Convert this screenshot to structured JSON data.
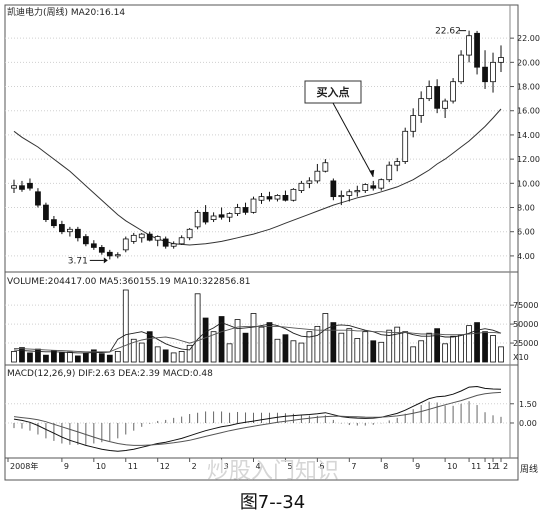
{
  "chart_data": [
    {
      "type": "candlestick",
      "title": "凯迪电力(周线) MA20:16.14",
      "ylim": [
        3.0,
        23.5
      ],
      "yticks": [
        4.0,
        6.0,
        8.0,
        10.0,
        12.0,
        14.0,
        16.0,
        18.0,
        20.0,
        22.0
      ],
      "ytick_labels": [
        "4.00",
        "6.00",
        "8.00",
        "10.00",
        "12.00",
        "14.00",
        "16.00",
        "18.00",
        "20.00",
        "22.00"
      ],
      "candles": [
        {
          "o": 9.6,
          "h": 10.3,
          "l": 9.2,
          "c": 9.8
        },
        {
          "o": 9.8,
          "h": 10.2,
          "l": 9.3,
          "c": 9.5
        },
        {
          "o": 10.0,
          "h": 10.4,
          "l": 9.4,
          "c": 9.6
        },
        {
          "o": 9.3,
          "h": 9.6,
          "l": 8.0,
          "c": 8.2
        },
        {
          "o": 8.2,
          "h": 8.4,
          "l": 6.8,
          "c": 7.0
        },
        {
          "o": 7.0,
          "h": 7.3,
          "l": 6.3,
          "c": 6.5
        },
        {
          "o": 6.6,
          "h": 6.9,
          "l": 5.8,
          "c": 6.0
        },
        {
          "o": 6.0,
          "h": 6.4,
          "l": 5.6,
          "c": 6.2
        },
        {
          "o": 6.2,
          "h": 6.4,
          "l": 5.2,
          "c": 5.5
        },
        {
          "o": 5.6,
          "h": 5.8,
          "l": 4.8,
          "c": 5.0
        },
        {
          "o": 5.0,
          "h": 5.3,
          "l": 4.5,
          "c": 4.7
        },
        {
          "o": 4.7,
          "h": 4.9,
          "l": 4.1,
          "c": 4.3
        },
        {
          "o": 4.3,
          "h": 4.5,
          "l": 3.71,
          "c": 4.0
        },
        {
          "o": 4.0,
          "h": 4.3,
          "l": 3.8,
          "c": 4.1
        },
        {
          "o": 4.5,
          "h": 5.6,
          "l": 4.3,
          "c": 5.4
        },
        {
          "o": 5.2,
          "h": 5.9,
          "l": 5.0,
          "c": 5.7
        },
        {
          "o": 5.5,
          "h": 5.9,
          "l": 5.1,
          "c": 5.8
        },
        {
          "o": 5.8,
          "h": 6.0,
          "l": 5.2,
          "c": 5.3
        },
        {
          "o": 5.3,
          "h": 5.7,
          "l": 4.8,
          "c": 5.6
        },
        {
          "o": 5.4,
          "h": 5.6,
          "l": 4.6,
          "c": 4.8
        },
        {
          "o": 4.8,
          "h": 5.2,
          "l": 4.6,
          "c": 5.0
        },
        {
          "o": 5.0,
          "h": 5.7,
          "l": 4.9,
          "c": 5.5
        },
        {
          "o": 5.5,
          "h": 6.3,
          "l": 5.3,
          "c": 6.2
        },
        {
          "o": 6.4,
          "h": 7.8,
          "l": 6.2,
          "c": 7.6
        },
        {
          "o": 7.6,
          "h": 8.2,
          "l": 6.6,
          "c": 6.8
        },
        {
          "o": 7.0,
          "h": 7.6,
          "l": 6.8,
          "c": 7.3
        },
        {
          "o": 7.4,
          "h": 8.0,
          "l": 7.0,
          "c": 7.2
        },
        {
          "o": 7.2,
          "h": 7.6,
          "l": 6.8,
          "c": 7.5
        },
        {
          "o": 7.5,
          "h": 8.3,
          "l": 7.3,
          "c": 8.0
        },
        {
          "o": 8.0,
          "h": 8.4,
          "l": 7.4,
          "c": 7.6
        },
        {
          "o": 7.6,
          "h": 8.9,
          "l": 7.5,
          "c": 8.7
        },
        {
          "o": 8.6,
          "h": 9.2,
          "l": 8.3,
          "c": 8.9
        },
        {
          "o": 8.9,
          "h": 9.3,
          "l": 8.5,
          "c": 8.7
        },
        {
          "o": 8.7,
          "h": 9.1,
          "l": 8.5,
          "c": 9.0
        },
        {
          "o": 9.0,
          "h": 9.4,
          "l": 8.5,
          "c": 8.6
        },
        {
          "o": 8.6,
          "h": 9.6,
          "l": 8.5,
          "c": 9.5
        },
        {
          "o": 9.4,
          "h": 10.2,
          "l": 9.2,
          "c": 10.0
        },
        {
          "o": 10.0,
          "h": 10.5,
          "l": 9.6,
          "c": 10.2
        },
        {
          "o": 10.2,
          "h": 11.6,
          "l": 10.0,
          "c": 11.0
        },
        {
          "o": 11.0,
          "h": 12.0,
          "l": 10.9,
          "c": 11.7
        },
        {
          "o": 10.2,
          "h": 10.4,
          "l": 8.6,
          "c": 8.9
        },
        {
          "o": 8.9,
          "h": 9.4,
          "l": 8.2,
          "c": 9.0
        },
        {
          "o": 9.0,
          "h": 9.5,
          "l": 8.5,
          "c": 9.3
        },
        {
          "o": 9.3,
          "h": 9.8,
          "l": 8.9,
          "c": 9.4
        },
        {
          "o": 9.4,
          "h": 10.0,
          "l": 9.2,
          "c": 9.9
        },
        {
          "o": 9.8,
          "h": 10.2,
          "l": 9.4,
          "c": 9.6
        },
        {
          "o": 9.6,
          "h": 10.4,
          "l": 9.4,
          "c": 10.3
        },
        {
          "o": 10.3,
          "h": 11.8,
          "l": 10.1,
          "c": 11.5
        },
        {
          "o": 11.5,
          "h": 12.1,
          "l": 11.0,
          "c": 11.8
        },
        {
          "o": 11.8,
          "h": 14.6,
          "l": 11.6,
          "c": 14.3
        },
        {
          "o": 14.3,
          "h": 16.2,
          "l": 13.8,
          "c": 15.6
        },
        {
          "o": 15.6,
          "h": 17.6,
          "l": 15.0,
          "c": 17.0
        },
        {
          "o": 17.0,
          "h": 18.5,
          "l": 16.8,
          "c": 18.0
        },
        {
          "o": 18.0,
          "h": 18.6,
          "l": 15.8,
          "c": 16.2
        },
        {
          "o": 16.2,
          "h": 17.0,
          "l": 15.4,
          "c": 16.8
        },
        {
          "o": 16.8,
          "h": 18.7,
          "l": 16.6,
          "c": 18.4
        },
        {
          "o": 18.4,
          "h": 21.0,
          "l": 18.2,
          "c": 20.6
        },
        {
          "o": 20.6,
          "h": 22.62,
          "l": 20.0,
          "c": 22.2
        },
        {
          "o": 22.4,
          "h": 22.6,
          "l": 19.0,
          "c": 19.6
        },
        {
          "o": 19.6,
          "h": 21.0,
          "l": 17.8,
          "c": 18.4
        },
        {
          "o": 18.4,
          "h": 20.8,
          "l": 17.5,
          "c": 20.0
        },
        {
          "o": 20.0,
          "h": 21.4,
          "l": 19.2,
          "c": 20.4
        }
      ],
      "ma_line": [
        14.3,
        13.8,
        13.4,
        13.0,
        12.5,
        12.0,
        11.5,
        11.0,
        10.4,
        9.8,
        9.2,
        8.6,
        8.0,
        7.4,
        6.9,
        6.5,
        6.1,
        5.7,
        5.4,
        5.2,
        5.0,
        4.95,
        4.9,
        4.95,
        5.0,
        5.1,
        5.2,
        5.35,
        5.5,
        5.65,
        5.8,
        6.0,
        6.2,
        6.45,
        6.7,
        6.95,
        7.2,
        7.45,
        7.7,
        7.95,
        8.2,
        8.4,
        8.6,
        8.8,
        8.95,
        9.1,
        9.3,
        9.5,
        9.7,
        10.0,
        10.3,
        10.7,
        11.1,
        11.6,
        12.0,
        12.5,
        13.0,
        13.5,
        14.1,
        14.7,
        15.4,
        16.14
      ],
      "annotations": [
        {
          "text": "3.71",
          "value": 3.71
        },
        {
          "text": "22.62",
          "value": 22.62
        },
        {
          "text": "买入点"
        }
      ]
    },
    {
      "type": "bar",
      "title": "VOLUME:204417.00  MA5:360155.19  MA10:322856.81",
      "ylim": [
        0,
        95000
      ],
      "yticks": [
        25000,
        50000,
        75000
      ],
      "ytick_labels": [
        "25000",
        "50000",
        "75000"
      ],
      "ytick_unit": "X10",
      "volumes": [
        14000,
        19000,
        12000,
        17000,
        9000,
        15000,
        12000,
        13000,
        8000,
        12000,
        16000,
        11000,
        9000,
        14000,
        95000,
        30000,
        25000,
        40000,
        20000,
        16000,
        12000,
        14000,
        22000,
        90000,
        58000,
        40000,
        60000,
        24000,
        56000,
        38000,
        64000,
        46000,
        52000,
        30000,
        36000,
        28000,
        25000,
        40000,
        47000,
        64000,
        52000,
        38000,
        44000,
        31000,
        40000,
        28000,
        26000,
        42000,
        46000,
        40000,
        20000,
        28000,
        38000,
        44000,
        24000,
        34000,
        36000,
        48000,
        52000,
        40000,
        35000,
        20000
      ],
      "ma_short": [
        16000,
        15000,
        14500,
        14000,
        13500,
        13500,
        13000,
        12500,
        12000,
        12000,
        12500,
        12500,
        13000,
        30000,
        36000,
        38000,
        40000,
        36000,
        30000,
        24000,
        20000,
        17000,
        16000,
        30000,
        40000,
        45000,
        52000,
        48000,
        44000,
        45000,
        46000,
        48000,
        50000,
        48000,
        44000,
        38000,
        34000,
        33000,
        35000,
        43000,
        48000,
        49000,
        48000,
        45000,
        42000,
        40000,
        36000,
        35000,
        37000,
        39000,
        36000,
        34000,
        34000,
        35000,
        33000,
        33000,
        35000,
        38000,
        42000,
        44000,
        42000,
        38000
      ],
      "ma_long": [
        18000,
        17500,
        17000,
        16500,
        16000,
        15500,
        15000,
        14500,
        14000,
        13500,
        13500,
        13500,
        13500,
        18000,
        22000,
        26000,
        29000,
        31000,
        32000,
        33000,
        31000,
        28000,
        25000,
        28000,
        32000,
        36000,
        40000,
        43000,
        46000,
        47000,
        47000,
        47000,
        47000,
        47000,
        46000,
        45000,
        44000,
        43000,
        42000,
        42000,
        42000,
        42000,
        42000,
        41000,
        41000,
        40000,
        40000,
        39000,
        39000,
        39000,
        38000,
        37000,
        37000,
        37000,
        36000,
        36000,
        36000,
        37000,
        38000,
        39000,
        39000,
        38000
      ]
    },
    {
      "type": "line",
      "title": "MACD(12,26,9)  DIF:2.63  DEA:2.39  MACD:0.48",
      "ylim": [
        -2.5,
        3.2
      ],
      "yticks": [
        0.0,
        1.5
      ],
      "ytick_labels": [
        "0.00",
        "1.50"
      ],
      "dif": [
        0.3,
        0.2,
        0.05,
        -0.2,
        -0.5,
        -0.8,
        -1.1,
        -1.35,
        -1.55,
        -1.75,
        -1.9,
        -2.05,
        -2.15,
        -2.2,
        -2.15,
        -2.05,
        -1.9,
        -1.75,
        -1.6,
        -1.5,
        -1.35,
        -1.2,
        -1.0,
        -0.8,
        -0.6,
        -0.45,
        -0.3,
        -0.2,
        -0.05,
        0.05,
        0.15,
        0.25,
        0.35,
        0.45,
        0.52,
        0.58,
        0.62,
        0.66,
        0.72,
        0.8,
        0.65,
        0.5,
        0.42,
        0.38,
        0.36,
        0.38,
        0.45,
        0.6,
        0.75,
        1.0,
        1.3,
        1.6,
        1.9,
        2.05,
        2.1,
        2.25,
        2.5,
        2.8,
        2.85,
        2.7,
        2.65,
        2.63
      ],
      "dea": [
        0.5,
        0.42,
        0.35,
        0.25,
        0.1,
        -0.1,
        -0.3,
        -0.5,
        -0.7,
        -0.9,
        -1.1,
        -1.3,
        -1.45,
        -1.6,
        -1.7,
        -1.75,
        -1.75,
        -1.72,
        -1.68,
        -1.62,
        -1.55,
        -1.45,
        -1.35,
        -1.2,
        -1.05,
        -0.9,
        -0.75,
        -0.6,
        -0.48,
        -0.36,
        -0.25,
        -0.15,
        -0.05,
        0.05,
        0.14,
        0.22,
        0.3,
        0.37,
        0.44,
        0.5,
        0.53,
        0.52,
        0.5,
        0.48,
        0.46,
        0.45,
        0.46,
        0.5,
        0.55,
        0.64,
        0.76,
        0.9,
        1.07,
        1.25,
        1.42,
        1.58,
        1.75,
        1.95,
        2.15,
        2.28,
        2.35,
        2.39
      ],
      "macd": [
        -0.4,
        -0.44,
        -0.6,
        -0.9,
        -1.2,
        -1.4,
        -1.6,
        -1.7,
        -1.7,
        -1.7,
        -1.6,
        -1.5,
        -1.4,
        -1.2,
        -0.9,
        -0.6,
        -0.3,
        -0.06,
        0.16,
        0.24,
        0.4,
        0.5,
        0.7,
        0.8,
        0.9,
        0.9,
        0.9,
        0.8,
        0.86,
        0.82,
        0.8,
        0.8,
        0.8,
        0.8,
        0.76,
        0.72,
        0.64,
        0.58,
        0.56,
        0.6,
        0.24,
        -0.04,
        -0.16,
        -0.2,
        -0.2,
        -0.14,
        -0.02,
        0.2,
        0.4,
        0.72,
        1.08,
        1.4,
        1.66,
        1.6,
        1.36,
        1.34,
        1.5,
        1.7,
        1.4,
        0.84,
        0.6,
        0.48
      ]
    }
  ],
  "x_axis_labels": [
    "2008年",
    "9",
    "10",
    "11",
    "12",
    "2",
    "3",
    "4",
    "5",
    "6",
    "7",
    "8",
    "9",
    "10",
    "11",
    "12",
    "1",
    "2"
  ],
  "period_label": "周线",
  "watermark": "炒股入门知识",
  "caption": "图7--34"
}
